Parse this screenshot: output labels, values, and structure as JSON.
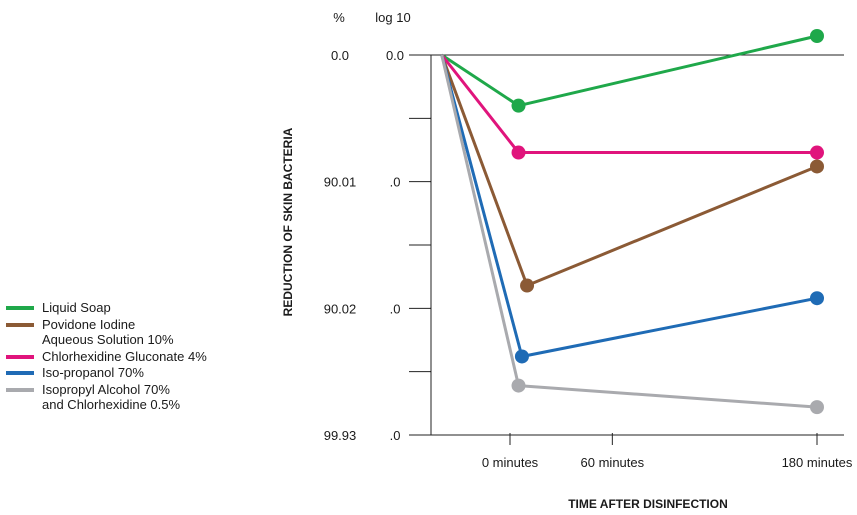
{
  "chart_data": {
    "type": "line",
    "ylabel": "REDUCTION OF SKIN BACTERIA",
    "xlabel": "TIME AFTER DISINFECTION",
    "y_headers": {
      "percent": "%",
      "log": "log 10"
    },
    "y_ticks": [
      {
        "percent": "0.0",
        "log": "0.0",
        "value": 0
      },
      {
        "percent": "90.01",
        "log": ".0",
        "value": 1
      },
      {
        "percent": "90.02",
        "log": ".0",
        "value": 2
      },
      {
        "percent": "99.93",
        "log": ".0",
        "value": 3
      }
    ],
    "ylim": [
      0,
      3
    ],
    "x_ticks": [
      "0 minutes",
      "60 minutes",
      "180 minutes"
    ],
    "x_tick_values": [
      0,
      60,
      180
    ],
    "x_origin": -40,
    "series": [
      {
        "name": "Liquid Soap",
        "color": "#1fa84a",
        "points": [
          {
            "x": -40,
            "y": 0
          },
          {
            "x": 5,
            "y": 0.4
          },
          {
            "x": 180,
            "y": -0.15
          }
        ]
      },
      {
        "name": "Povidone Iodine\nAqueous Solution 10%",
        "color": "#8b5a35",
        "points": [
          {
            "x": -40,
            "y": 0
          },
          {
            "x": 10,
            "y": 1.82
          },
          {
            "x": 180,
            "y": 0.88
          }
        ]
      },
      {
        "name": "Chlorhexidine Gluconate 4%",
        "color": "#e0147c",
        "points": [
          {
            "x": -40,
            "y": 0
          },
          {
            "x": 5,
            "y": 0.77
          },
          {
            "x": 180,
            "y": 0.77
          }
        ]
      },
      {
        "name": "Iso-propanol 70%",
        "color": "#1f6bb5",
        "points": [
          {
            "x": -40,
            "y": 0
          },
          {
            "x": 7,
            "y": 2.38
          },
          {
            "x": 180,
            "y": 1.92
          }
        ]
      },
      {
        "name": "Isopropyl Alcohol 70%\nand Chlorhexidine 0.5%",
        "color": "#a9aaae",
        "points": [
          {
            "x": -40,
            "y": 0
          },
          {
            "x": 5,
            "y": 2.61
          },
          {
            "x": 180,
            "y": 2.78
          }
        ]
      }
    ],
    "grid": false,
    "legend_position": "left"
  }
}
